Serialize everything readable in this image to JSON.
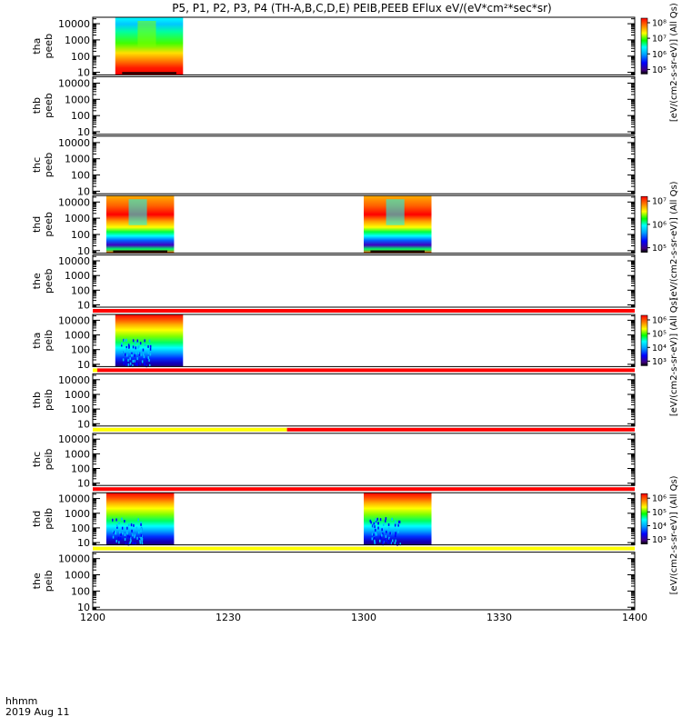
{
  "title": "P5, P1, P2, P3, P4 (TH-A,B,C,D,E) PEIB,PEEB EFlux eV/(eV*cm²*sec*sr)",
  "chart_data": {
    "type": "heatmap",
    "x_axis": {
      "range_hhmm": [
        "1200",
        "1400"
      ],
      "tick_labels": [
        "1200",
        "1230",
        "1300",
        "1330",
        "1400"
      ],
      "label_line1": "hhmm",
      "label_line2": "2019 Aug 11"
    },
    "y_axis": {
      "scale": "log",
      "range_eV": [
        7,
        25000
      ],
      "tick_labels": [
        "10",
        "100",
        "1000",
        "10000"
      ]
    },
    "panels": [
      {
        "line1": "tha",
        "line2": "peeb",
        "tick_labels": [
          "10",
          "100",
          "1000",
          "10000"
        ],
        "blocks": [
          {
            "start": "1205",
            "end": "1220",
            "kind": "electron-a"
          }
        ],
        "colorbar": {
          "labels": [
            "10⁸",
            "10⁷",
            "10⁶",
            "10⁵"
          ],
          "unit": "[eV/(cm2-s-sr-eV)] (All Qs)"
        },
        "flag_bar": null
      },
      {
        "line1": "thb",
        "line2": "peeb",
        "tick_labels": [
          "10",
          "100",
          "1000",
          "10000"
        ],
        "blocks": [],
        "colorbar": null,
        "flag_bar": null
      },
      {
        "line1": "thc",
        "line2": "peeb",
        "tick_labels": [
          "10",
          "100",
          "1000",
          "10000"
        ],
        "blocks": [],
        "colorbar": null,
        "flag_bar": null
      },
      {
        "line1": "thd",
        "line2": "peeb",
        "tick_labels": [
          "10",
          "100",
          "1000",
          "10000"
        ],
        "blocks": [
          {
            "start": "1203",
            "end": "1218",
            "kind": "electron-d"
          },
          {
            "start": "1300",
            "end": "1315",
            "kind": "electron-d"
          }
        ],
        "colorbar": {
          "labels": [
            "10⁷",
            "10⁶",
            "10⁵"
          ],
          "unit": "[eV/(cm2-s-sr-eV)] (All Qs)"
        },
        "flag_bar": null
      },
      {
        "line1": "the",
        "line2": "peeb",
        "tick_labels": [
          "10",
          "100",
          "1000",
          "10000"
        ],
        "blocks": [],
        "colorbar": null,
        "flag_bar": {
          "segments": [
            {
              "start": "1200",
              "end": "1400",
              "color": "#ff0000"
            }
          ]
        }
      },
      {
        "line1": "tha",
        "line2": "peib",
        "tick_labels": [
          "10",
          "100",
          "1000",
          "10000"
        ],
        "blocks": [
          {
            "start": "1205",
            "end": "1220",
            "kind": "ion"
          }
        ],
        "colorbar": {
          "labels": [
            "10⁶",
            "10⁵",
            "10⁴",
            "10³"
          ],
          "unit": "[eV/(cm2-s-sr-eV)] (All Qs)"
        },
        "flag_bar": {
          "segments": [
            {
              "start": "1200",
              "end": "1201",
              "color": "#ffff00"
            },
            {
              "start": "1201",
              "end": "1400",
              "color": "#ff0000"
            }
          ]
        }
      },
      {
        "line1": "thb",
        "line2": "peib",
        "tick_labels": [
          "10",
          "100",
          "1000",
          "10000"
        ],
        "blocks": [],
        "colorbar": null,
        "flag_bar": {
          "segments": [
            {
              "start": "1200",
              "end": "1243",
              "color": "#ffff00"
            },
            {
              "start": "1243",
              "end": "1400",
              "color": "#ff0000"
            }
          ]
        }
      },
      {
        "line1": "thc",
        "line2": "peib",
        "tick_labels": [
          "10",
          "100",
          "1000",
          "10000"
        ],
        "blocks": [],
        "colorbar": null,
        "flag_bar": {
          "segments": [
            {
              "start": "1200",
              "end": "1400",
              "color": "#ff0000"
            }
          ]
        }
      },
      {
        "line1": "thd",
        "line2": "peib",
        "tick_labels": [
          "10",
          "100",
          "1000",
          "10000"
        ],
        "blocks": [
          {
            "start": "1203",
            "end": "1218",
            "kind": "ion"
          },
          {
            "start": "1300",
            "end": "1315",
            "kind": "ion"
          }
        ],
        "colorbar": {
          "labels": [
            "10⁶",
            "10⁵",
            "10⁴",
            "10³"
          ],
          "unit": "[eV/(cm2-s-sr-eV)] (All Qs)"
        },
        "flag_bar": {
          "segments": [
            {
              "start": "1200",
              "end": "1400",
              "color": "#ffff00"
            }
          ]
        }
      },
      {
        "line1": "the",
        "line2": "peib",
        "tick_labels": [
          "10",
          "100",
          "1000",
          "10000"
        ],
        "blocks": [],
        "colorbar": null,
        "flag_bar": null
      }
    ],
    "top_colorbar_unit": "eV/(cm2-s-sr-eV) (All Qs)"
  }
}
